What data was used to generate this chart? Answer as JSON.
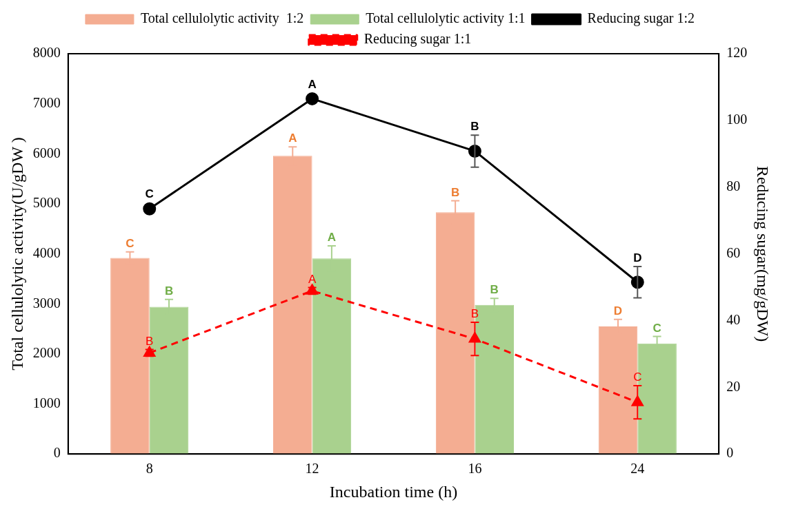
{
  "chart_data": {
    "type": "bar",
    "xlabel": "Incubation time (h)",
    "ylabel": "Total cellulolytic activity(U/gDW )",
    "y2label": "Reducing sugar(mg/gDW)",
    "categories": [
      "8",
      "12",
      "16",
      "24"
    ],
    "series": [
      {
        "name": "Total cellulolytic activity  1:2",
        "color": "#f4ad92",
        "values": [
          3920,
          5960,
          4830,
          2550
        ],
        "errors": [
          120,
          180,
          230,
          140
        ],
        "value_labels": [
          "C",
          "A",
          "B",
          "D"
        ]
      },
      {
        "name": "Total cellulolytic activity 1:1",
        "color": "#a9d18e",
        "values": [
          2940,
          3910,
          2980,
          2210
        ],
        "errors": [
          150,
          250,
          130,
          140
        ],
        "value_labels": [
          "B",
          "A",
          "B",
          "C"
        ]
      },
      {
        "name": "Reducing sugar 1:2",
        "type": "line",
        "axis": "y2",
        "color": "#000000",
        "marker": "circle",
        "line_style": "solid",
        "values": [
          73.5,
          106.5,
          90.8,
          51.5
        ],
        "errors": [
          null,
          null,
          4.8,
          4.7
        ],
        "value_labels": [
          "C",
          "A",
          "B",
          "D"
        ]
      },
      {
        "name": "Reducing sugar 1:1",
        "type": "line",
        "axis": "y2",
        "color": "#ff0000",
        "marker": "triangle",
        "line_style": "dashed",
        "values": [
          30.3,
          48.9,
          34.5,
          15.5
        ],
        "errors": [
          1,
          1,
          5,
          5
        ],
        "value_labels": [
          "B",
          "A",
          "B",
          "C"
        ]
      }
    ],
    "ylim": [
      0,
      8000
    ],
    "yticks": [
      0,
      1000,
      2000,
      3000,
      4000,
      5000,
      6000,
      7000,
      8000
    ],
    "y2lim": [
      0,
      120
    ],
    "y2ticks": [
      0,
      20,
      40,
      60,
      80,
      100,
      120
    ],
    "grid": false,
    "legend": "top"
  }
}
